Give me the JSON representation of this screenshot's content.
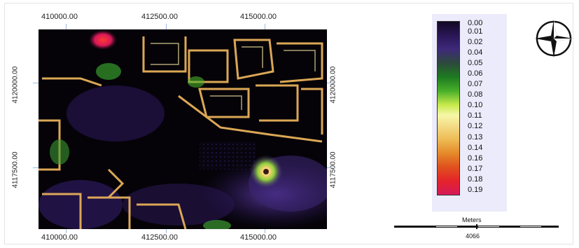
{
  "map": {
    "x_ticks": [
      "410000.00",
      "412500.00",
      "415000.00"
    ],
    "y_ticks": [
      "4120000.00",
      "4117500.00"
    ],
    "palette": [
      "#120a24",
      "#3e2a7a",
      "#1e7a20",
      "#c7e94a",
      "#f6f7a8",
      "#eebb55",
      "#e4242a",
      "#d6185a"
    ]
  },
  "legend": {
    "values": [
      "0.00",
      "0.01",
      "0.02",
      "0.04",
      "0.05",
      "0.06",
      "0.07",
      "0.08",
      "0.10",
      "0.11",
      "0.12",
      "0.13",
      "0.14",
      "0.16",
      "0.17",
      "0.18",
      "0.19"
    ]
  },
  "scale_bar": {
    "title": "Meters",
    "value": "4066"
  },
  "north_arrow": {
    "icon": "compass-rose-icon"
  }
}
